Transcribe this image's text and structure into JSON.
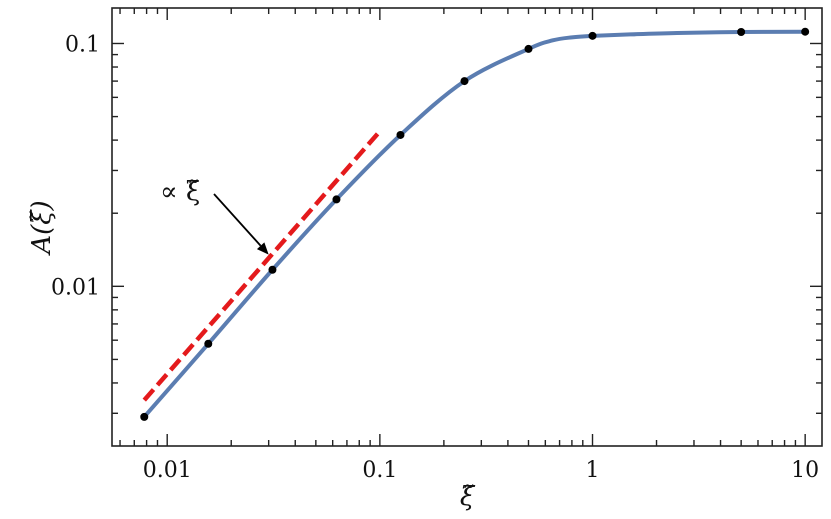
{
  "chart_data": {
    "type": "line",
    "xscale": "log",
    "yscale": "log",
    "xlim": [
      0.0055,
      12
    ],
    "ylim": [
      0.0022,
      0.14
    ],
    "xlabel": "ξ̃",
    "ylabel": "A(ξ̃)",
    "x_tick_labels": [
      "0.01",
      "0.1",
      "1",
      "10"
    ],
    "y_tick_labels": [
      "0.01",
      "0.1"
    ],
    "grid": false,
    "series": [
      {
        "style": "solid-line",
        "color": "#5b7db1",
        "x": [
          0.0078,
          0.0156,
          0.03125,
          0.0625,
          0.125,
          0.25,
          0.5,
          0.65,
          0.8,
          1.0,
          1.5,
          2.5,
          5.0,
          10.0
        ],
        "y": [
          0.0029,
          0.0058,
          0.0117,
          0.0228,
          0.042,
          0.07,
          0.095,
          0.103,
          0.106,
          0.1075,
          0.109,
          0.1105,
          0.1115,
          0.1118
        ]
      },
      {
        "style": "markers",
        "color": "#000000",
        "x": [
          0.0078,
          0.0156,
          0.03125,
          0.0625,
          0.125,
          0.25,
          0.5,
          1.0,
          5.0,
          10.0
        ],
        "y": [
          0.0029,
          0.0058,
          0.0117,
          0.0228,
          0.042,
          0.07,
          0.095,
          0.1075,
          0.1115,
          0.1118
        ]
      },
      {
        "style": "dashed-line",
        "color": "#e41a1c",
        "x": [
          0.0078,
          0.1
        ],
        "y": [
          0.0034,
          0.0435
        ]
      }
    ],
    "annotations": [
      {
        "text": "∝ ξ̃",
        "arrow_to": [
          0.03,
          0.0135
        ]
      }
    ]
  }
}
